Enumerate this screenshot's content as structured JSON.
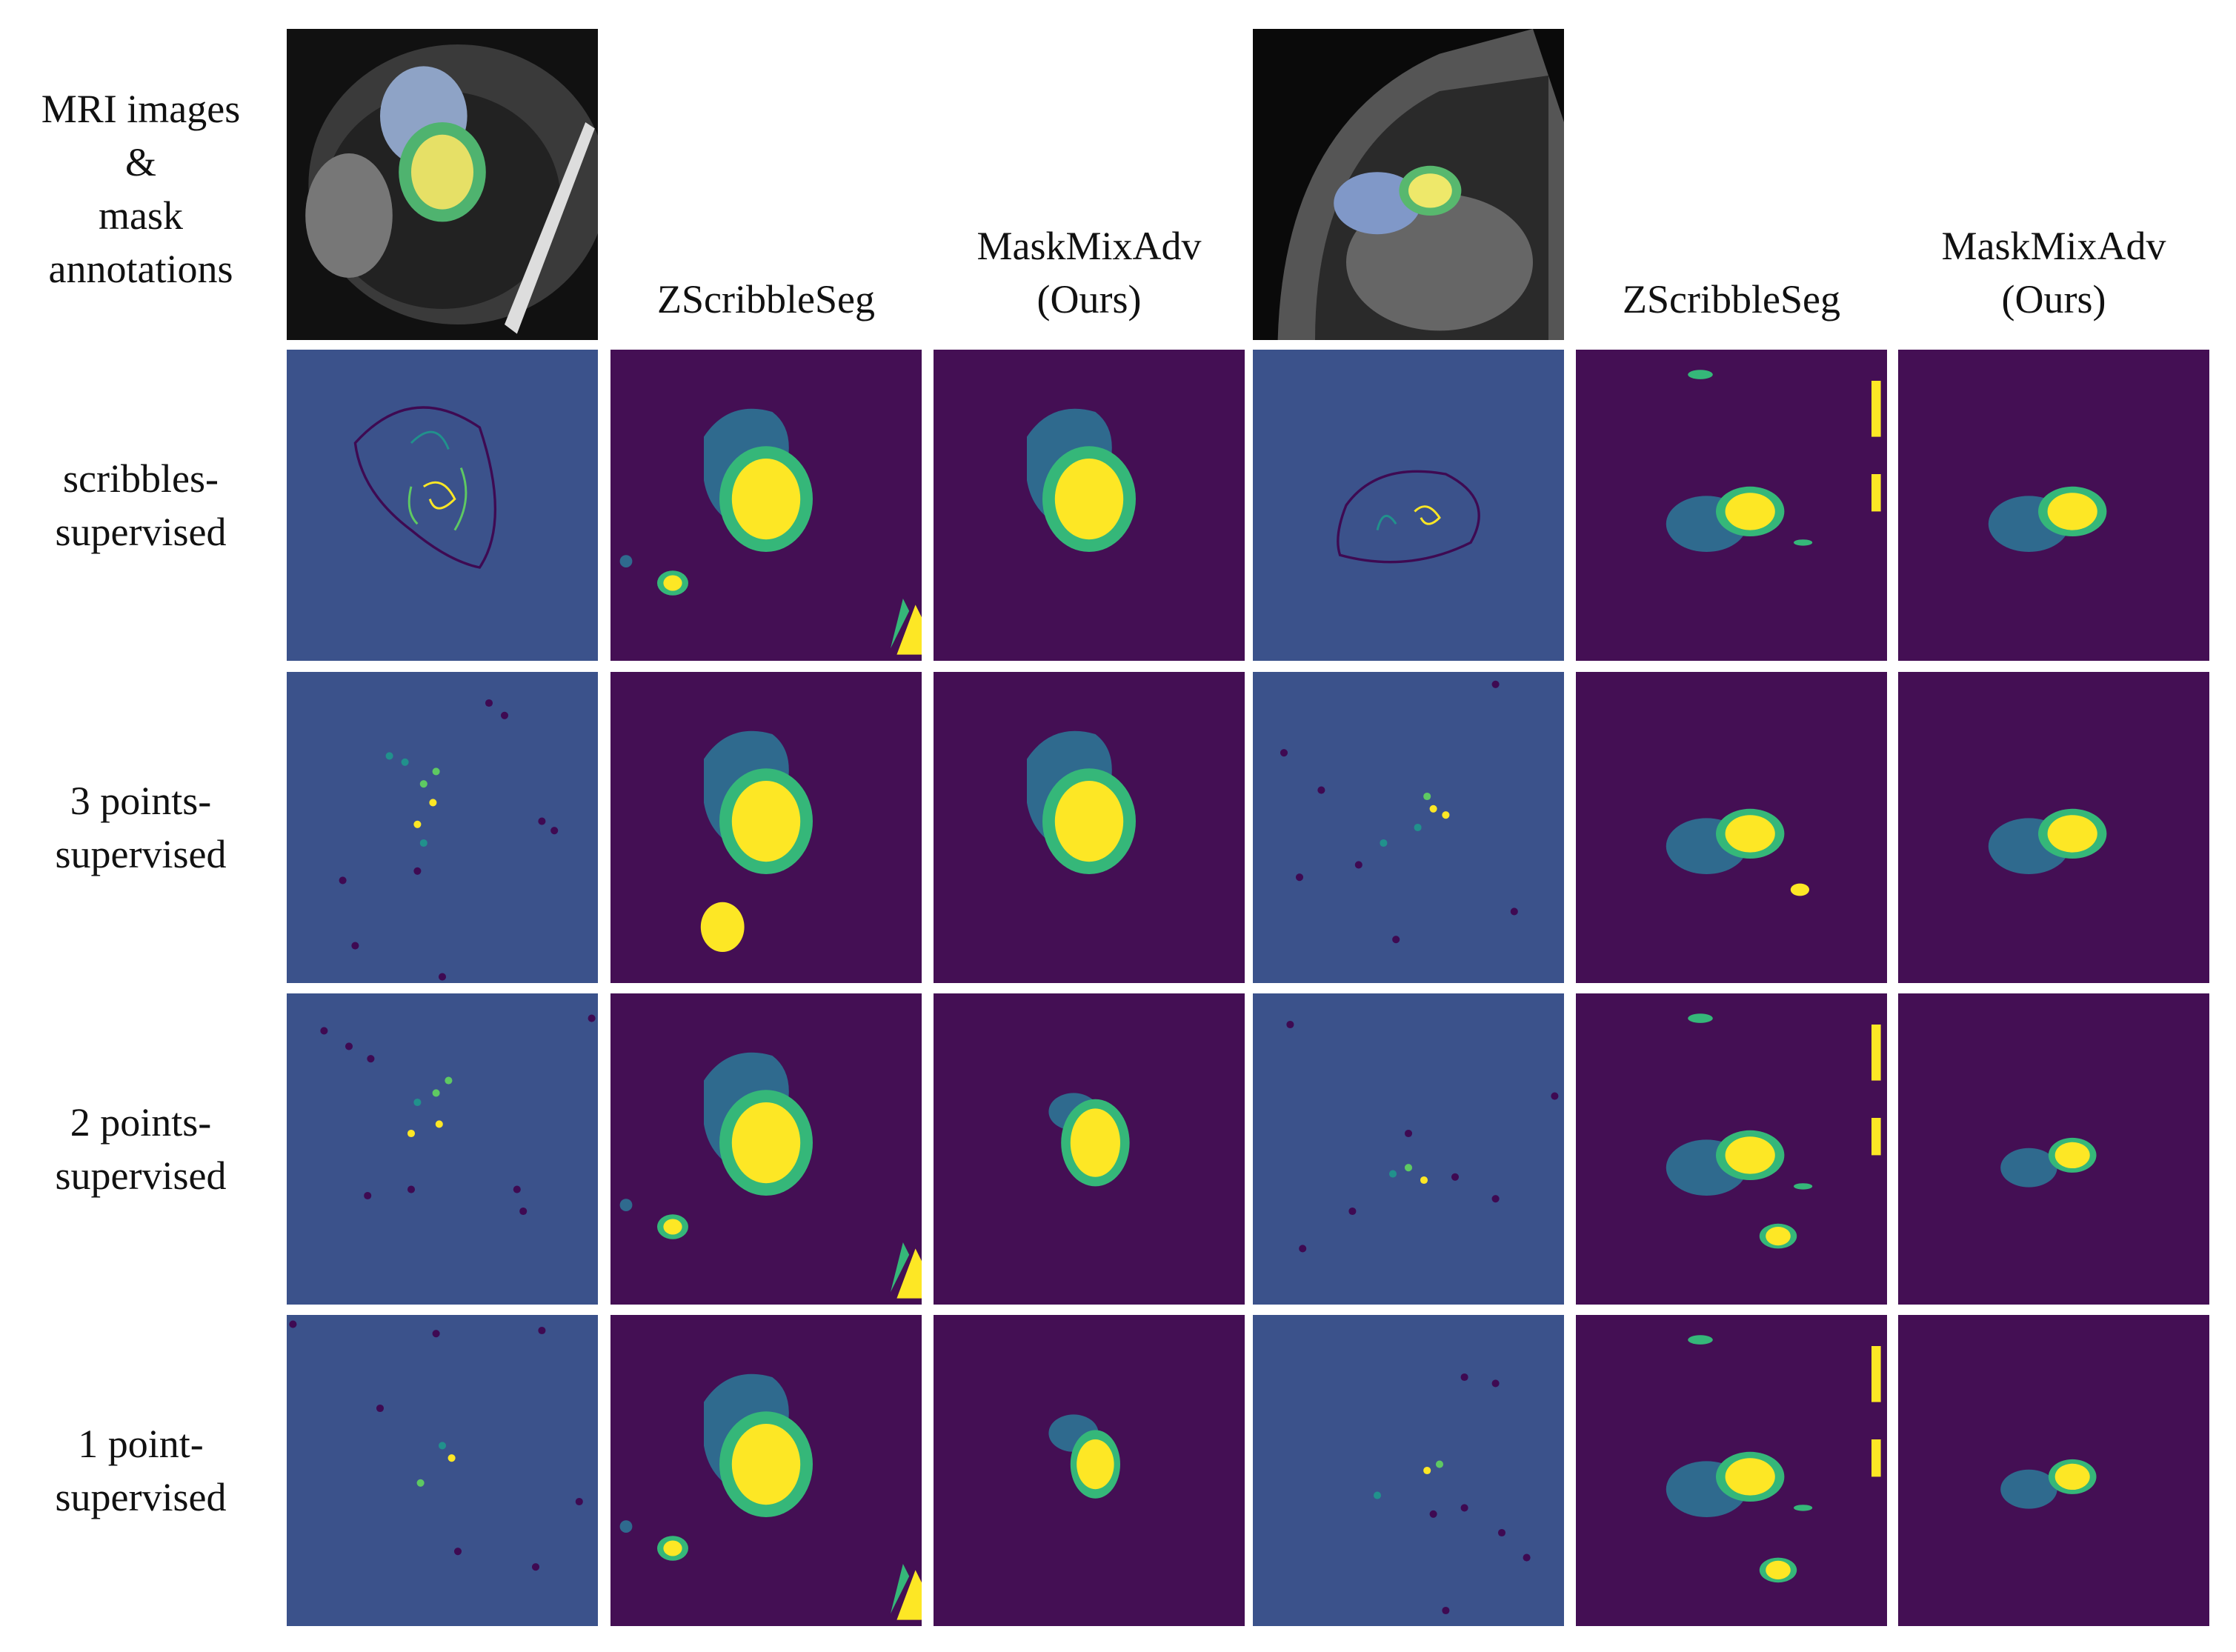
{
  "header": {
    "label": [
      "MRI images",
      "&",
      "mask",
      "annotations"
    ],
    "columns": [
      {
        "lines": [
          "ZScribbleSeg"
        ]
      },
      {
        "lines": [
          "MaskMixAdv",
          "(Ours)"
        ]
      },
      {
        "lines": [
          "ZScribbleSeg"
        ]
      },
      {
        "lines": [
          "MaskMixAdv",
          "(Ours)"
        ]
      }
    ]
  },
  "rows": [
    {
      "label": [
        "scribbles-",
        "supervised"
      ]
    },
    {
      "label": [
        "3 points-",
        "supervised"
      ]
    },
    {
      "label": [
        "2 points-",
        "supervised"
      ]
    },
    {
      "label": [
        "1 point-",
        "supervised"
      ]
    }
  ]
}
